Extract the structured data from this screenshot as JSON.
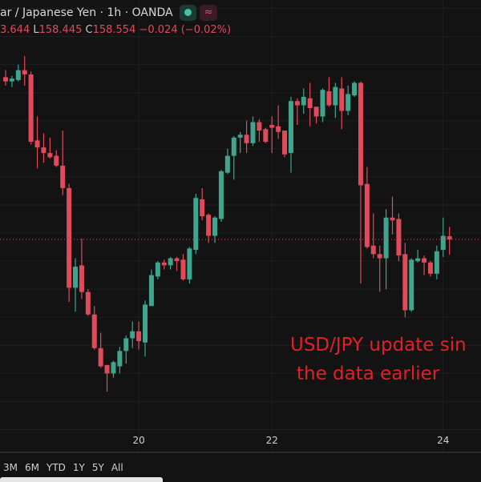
{
  "header": {
    "title": "ar / Japanese Yen · 1h · OANDA",
    "status_icon": "market-open-dot",
    "compare_icon": "approx-icon",
    "compare_glyph": "≈",
    "ohlc": {
      "h_value": "3.644",
      "l_label": "L",
      "l_value": "158.445",
      "c_label": "C",
      "c_value": "158.554",
      "change": "−0.024 (−0.02%)"
    }
  },
  "annotation": {
    "line1": "USD/JPY update sin",
    "line2": "the data earlier",
    "color": "#e0202a"
  },
  "range_buttons": [
    "3M",
    "6M",
    "YTD",
    "1Y",
    "5Y",
    "All"
  ],
  "colors": {
    "up": "#3fa58e",
    "down": "#e04a5a",
    "background": "#131313",
    "price_line": "#e04a5a"
  },
  "chart_data": {
    "type": "candlestick",
    "x_ticks": [
      {
        "label": "20",
        "candle": 21
      },
      {
        "label": "22",
        "candle": 42
      },
      {
        "label": "24",
        "candle": 69
      }
    ],
    "ylim": [
      157.18,
      160.26
    ],
    "grid": true,
    "last_price": 158.554,
    "candles": [
      [
        159.71,
        159.76,
        159.65,
        159.68
      ],
      [
        159.68,
        159.72,
        159.64,
        159.7
      ],
      [
        159.69,
        159.8,
        159.68,
        159.76
      ],
      [
        159.76,
        159.86,
        159.65,
        159.73
      ],
      [
        159.73,
        159.75,
        159.23,
        159.25
      ],
      [
        159.26,
        159.43,
        159.06,
        159.21
      ],
      [
        159.21,
        159.31,
        159.1,
        159.17
      ],
      [
        159.17,
        159.28,
        159.13,
        159.14
      ],
      [
        159.15,
        159.19,
        159.07,
        159.08
      ],
      [
        159.08,
        159.33,
        158.87,
        158.92
      ],
      [
        158.92,
        158.95,
        158.11,
        158.21
      ],
      [
        158.21,
        158.42,
        158.04,
        158.36
      ],
      [
        158.37,
        158.56,
        158.13,
        158.18
      ],
      [
        158.18,
        158.2,
        158.01,
        158.02
      ],
      [
        158.02,
        158.08,
        157.77,
        157.78
      ],
      [
        157.78,
        157.89,
        157.64,
        157.65
      ],
      [
        157.66,
        157.66,
        157.47,
        157.6
      ],
      [
        157.6,
        157.69,
        157.57,
        157.68
      ],
      [
        157.65,
        157.79,
        157.6,
        157.76
      ],
      [
        157.76,
        157.87,
        157.67,
        157.85
      ],
      [
        157.85,
        157.97,
        157.78,
        157.9
      ],
      [
        157.9,
        157.97,
        157.77,
        157.83
      ],
      [
        157.82,
        158.12,
        157.72,
        158.09
      ],
      [
        158.08,
        158.34,
        158.08,
        158.3
      ],
      [
        158.29,
        158.4,
        158.27,
        158.39
      ],
      [
        158.39,
        158.41,
        158.34,
        158.37
      ],
      [
        158.37,
        158.43,
        158.34,
        158.42
      ],
      [
        158.42,
        158.43,
        158.33,
        158.4
      ],
      [
        158.41,
        158.45,
        158.26,
        158.27
      ],
      [
        158.27,
        158.5,
        158.24,
        158.49
      ],
      [
        158.48,
        158.88,
        158.45,
        158.85
      ],
      [
        158.84,
        158.92,
        158.69,
        158.72
      ],
      [
        158.73,
        158.74,
        158.53,
        158.58
      ],
      [
        158.58,
        158.72,
        158.53,
        158.71
      ],
      [
        158.7,
        159.05,
        158.68,
        159.04
      ],
      [
        159.03,
        159.2,
        159.02,
        159.15
      ],
      [
        159.15,
        159.29,
        158.98,
        159.28
      ],
      [
        159.28,
        159.32,
        159.17,
        159.3
      ],
      [
        159.3,
        159.4,
        159.17,
        159.24
      ],
      [
        159.24,
        159.43,
        159.22,
        159.39
      ],
      [
        159.39,
        159.41,
        159.25,
        159.33
      ],
      [
        159.34,
        159.35,
        159.24,
        159.25
      ],
      [
        159.37,
        159.43,
        159.17,
        159.35
      ],
      [
        159.36,
        159.51,
        159.27,
        159.32
      ],
      [
        159.33,
        159.33,
        159.14,
        159.16
      ],
      [
        159.17,
        159.57,
        159.03,
        159.54
      ],
      [
        159.54,
        159.56,
        159.37,
        159.51
      ],
      [
        159.51,
        159.63,
        159.45,
        159.57
      ],
      [
        159.56,
        159.67,
        159.36,
        159.49
      ],
      [
        159.5,
        159.5,
        159.38,
        159.43
      ],
      [
        159.43,
        159.63,
        159.39,
        159.62
      ],
      [
        159.61,
        159.71,
        159.5,
        159.51
      ],
      [
        159.51,
        159.67,
        159.42,
        159.64
      ],
      [
        159.63,
        159.71,
        159.34,
        159.47
      ],
      [
        159.47,
        159.65,
        159.44,
        159.59
      ],
      [
        159.58,
        159.68,
        159.57,
        159.67
      ],
      [
        159.67,
        159.68,
        158.24,
        158.94
      ],
      [
        158.95,
        159.07,
        158.49,
        158.5
      ],
      [
        158.51,
        158.74,
        158.42,
        158.45
      ],
      [
        158.45,
        158.51,
        158.18,
        158.42
      ],
      [
        158.42,
        158.77,
        158.2,
        158.71
      ],
      [
        158.71,
        158.86,
        158.59,
        158.69
      ],
      [
        158.7,
        158.74,
        158.4,
        158.44
      ],
      [
        158.45,
        158.53,
        158.0,
        158.05
      ],
      [
        158.05,
        158.42,
        158.04,
        158.41
      ],
      [
        158.4,
        158.48,
        158.39,
        158.42
      ],
      [
        158.42,
        158.44,
        158.3,
        158.39
      ],
      [
        158.39,
        158.4,
        158.29,
        158.31
      ],
      [
        158.31,
        158.51,
        158.27,
        158.47
      ],
      [
        158.48,
        158.71,
        158.43,
        158.58
      ],
      [
        158.577,
        158.644,
        158.445,
        158.554
      ]
    ]
  }
}
